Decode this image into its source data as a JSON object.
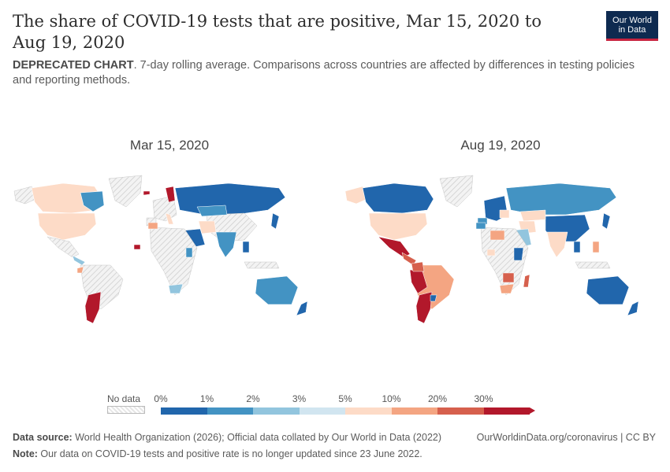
{
  "header": {
    "title": "The share of COVID-19 tests that are positive, Mar 15, 2020 to Aug 19, 2020",
    "subtitle_bold": "DEPRECATED CHART",
    "subtitle_rest": ". 7-day rolling average. Comparisons across countries are affected by differences in testing policies and reporting methods.",
    "logo_line1": "Our World",
    "logo_line2": "in Data"
  },
  "maps": {
    "left_title": "Mar 15, 2020",
    "right_title": "Aug 19, 2020"
  },
  "legend": {
    "no_data_label": "No data",
    "ticks": [
      "0%",
      "1%",
      "2%",
      "3%",
      "5%",
      "10%",
      "20%",
      "30%"
    ],
    "colors": [
      "#2166ac",
      "#4393c3",
      "#92c5de",
      "#d1e5f0",
      "#fddbc7",
      "#f4a582",
      "#d6604d",
      "#b2182b"
    ],
    "no_data_color": "#e6e6e6"
  },
  "footer": {
    "source_label": "Data source:",
    "source_text": " World Health Organization (2026); Official data collated by Our World in Data (2022)",
    "right_text": "OurWorldinData.org/coronavirus | CC BY",
    "note_label": "Note:",
    "note_text": " Our data on COVID-19 tests and positive rate is no longer updated since 23 June 2022."
  }
}
